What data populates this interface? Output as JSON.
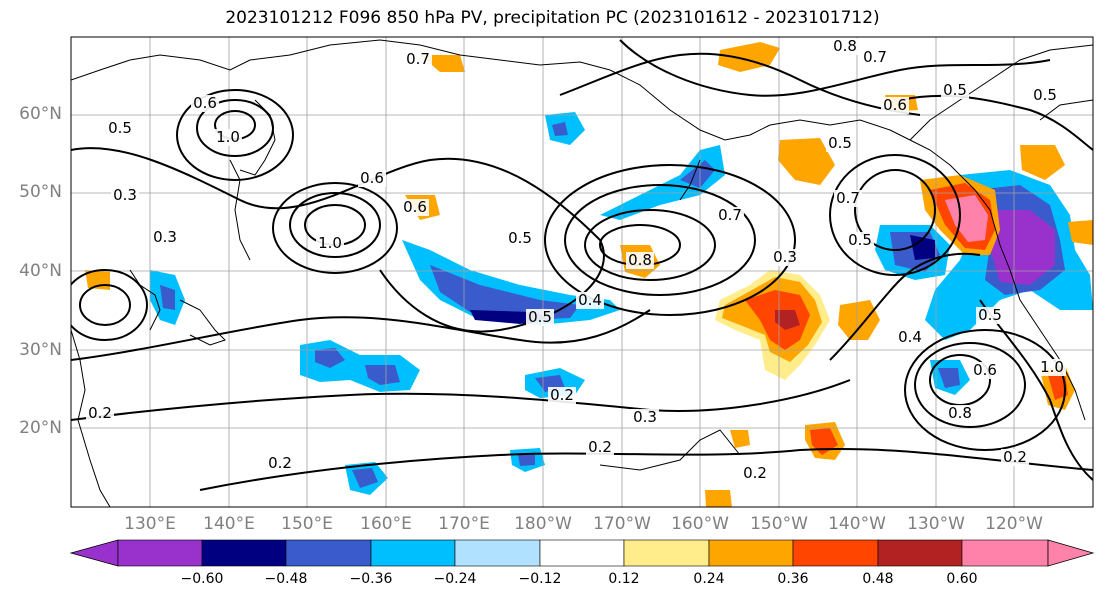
{
  "title": "2023101212 F096 850 hPa PV, precipitation PC (2023101612 - 2023101712)",
  "map": {
    "lat_labels": [
      "60°N",
      "50°N",
      "40°N",
      "30°N",
      "20°N"
    ],
    "lon_labels": [
      "130°E",
      "140°E",
      "150°E",
      "160°E",
      "170°E",
      "180°W",
      "170°W",
      "160°W",
      "150°W",
      "140°W",
      "130°W",
      "120°W"
    ],
    "contour_labels": [
      "0.7",
      "0.8",
      "0.7",
      "0.6",
      "0.5",
      "1.0",
      "0.6",
      "0.5",
      "0.3",
      "0.3",
      "1.0",
      "0.6",
      "0.6",
      "0.5",
      "0.5",
      "0.7",
      "0.8",
      "0.3",
      "0.5",
      "0.4",
      "0.4",
      "0.3",
      "0.2",
      "0.2",
      "0.2",
      "0.2",
      "0.5",
      "0.6",
      "0.8",
      "0.2",
      "0.7",
      "0.2",
      "0.5",
      "0.5",
      "1.0"
    ],
    "colors": {
      "coast": "#000000",
      "grid": "#a0a0a0",
      "contour": "#000000"
    }
  },
  "colorbar": {
    "colors": [
      "#9932cc",
      "#000080",
      "#3a5bcc",
      "#00bfff",
      "#b0e2ff",
      "#ffffff",
      "#ffec8b",
      "#ffa500",
      "#ff4500",
      "#b22222",
      "#ff82ab"
    ],
    "ticks": [
      "−0.60",
      "−0.48",
      "−0.36",
      "−0.24",
      "−0.12",
      "0.12",
      "0.24",
      "0.36",
      "0.48",
      "0.60"
    ]
  }
}
